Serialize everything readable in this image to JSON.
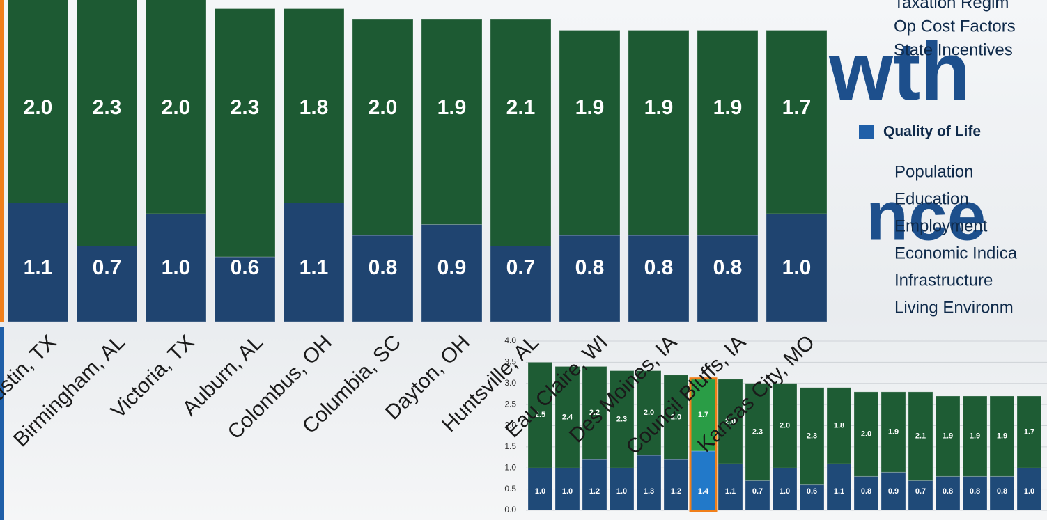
{
  "background_text": [
    "owth",
    "nce"
  ],
  "legend": {
    "items": [
      "Taxation Regim",
      "Op Cost Factors",
      "State Incentives"
    ],
    "group_title": "Quality of Life",
    "group_items": [
      "Population",
      "Education",
      "Employment",
      "Economic Indica",
      "Infrastructure",
      "Living Environm"
    ]
  },
  "chart_data": [
    {
      "type": "bar",
      "stacked": true,
      "categories": [
        "Austin, TX",
        "Birmingham, AL",
        "Victoria, TX",
        "Auburn, AL",
        "Colombus, OH",
        "Columbia, SC",
        "Dayton, OH",
        "Huntsville, AL",
        "Eau Claire, WI",
        "Des Moines, IA",
        "Council Bluffs, IA",
        "Kansas City, MO"
      ],
      "series": [
        {
          "color": "#1f4470",
          "values": [
            1.1,
            0.7,
            1.0,
            0.6,
            1.1,
            0.8,
            0.9,
            0.7,
            0.8,
            0.8,
            0.8,
            1.0
          ],
          "value_labels": [
            "1.1",
            "0.7",
            "1.0",
            "0.6",
            "1.1",
            "0.8",
            "0.9",
            "0.7",
            "0.8",
            "0.8",
            "0.8",
            "1.0"
          ]
        },
        {
          "color": "#1d5a33",
          "values": [
            2.0,
            2.3,
            2.0,
            2.3,
            1.8,
            2.0,
            1.9,
            2.1,
            1.9,
            1.9,
            1.9,
            1.7
          ],
          "value_labels": [
            "2.0",
            "2.3",
            "2.0",
            "2.3",
            "1.8",
            "2.0",
            "1.9",
            "2.1",
            "1.9",
            "1.9",
            "1.9",
            "1.7"
          ]
        }
      ]
    },
    {
      "type": "bar",
      "stacked": true,
      "grid": true,
      "categories": [
        null,
        null,
        null,
        null,
        null,
        null,
        null,
        null,
        null,
        null,
        null,
        null,
        null,
        null,
        null,
        null,
        null,
        null,
        null
      ],
      "ylim": [
        0,
        4
      ],
      "yticks": [
        {
          "value": 0,
          "label": "0.0"
        },
        0.5,
        {
          "value": 1,
          "label": "1.0"
        },
        1.5,
        {
          "value": 2,
          "label": "2.0"
        },
        2.5,
        {
          "value": 3,
          "label": "3.0"
        },
        3.5,
        {
          "value": 4,
          "label": "4.0"
        }
      ],
      "highlight": {
        "index": 6,
        "colors": [
          "#2279c9",
          "#2a9d46"
        ],
        "border": "#f07f1a"
      },
      "series": [
        {
          "color": "#1f4a78",
          "values": [
            1.0,
            1.0,
            1.2,
            1.0,
            1.3,
            1.2,
            1.4,
            1.1,
            0.7,
            1.0,
            0.6,
            1.1,
            0.8,
            0.9,
            0.7,
            0.8,
            0.8,
            0.8,
            1.0
          ],
          "value_labels": [
            "1.0",
            "1.0",
            "1.2",
            "1.0",
            "1.3",
            "1.2",
            "1.4",
            "1.1",
            "0.7",
            "1.0",
            "0.6",
            "1.1",
            "0.8",
            "0.9",
            "0.7",
            "0.8",
            "0.8",
            "0.8",
            "1.0"
          ]
        },
        {
          "color": "#1e5c34",
          "values": [
            2.5,
            2.4,
            2.2,
            2.3,
            2.0,
            2.0,
            1.7,
            2.0,
            2.3,
            2.0,
            2.3,
            1.8,
            2.0,
            1.9,
            2.1,
            1.9,
            1.9,
            1.9,
            1.7
          ],
          "value_labels": [
            "2.5",
            "2.4",
            "2.2",
            "2.3",
            "2.0",
            "2.0",
            "1.7",
            "2.0",
            "2.3",
            "2.0",
            "2.3",
            "1.8",
            "2.0",
            "1.9",
            "2.1",
            "1.9",
            "1.9",
            "1.9",
            "1.7"
          ]
        }
      ]
    }
  ]
}
